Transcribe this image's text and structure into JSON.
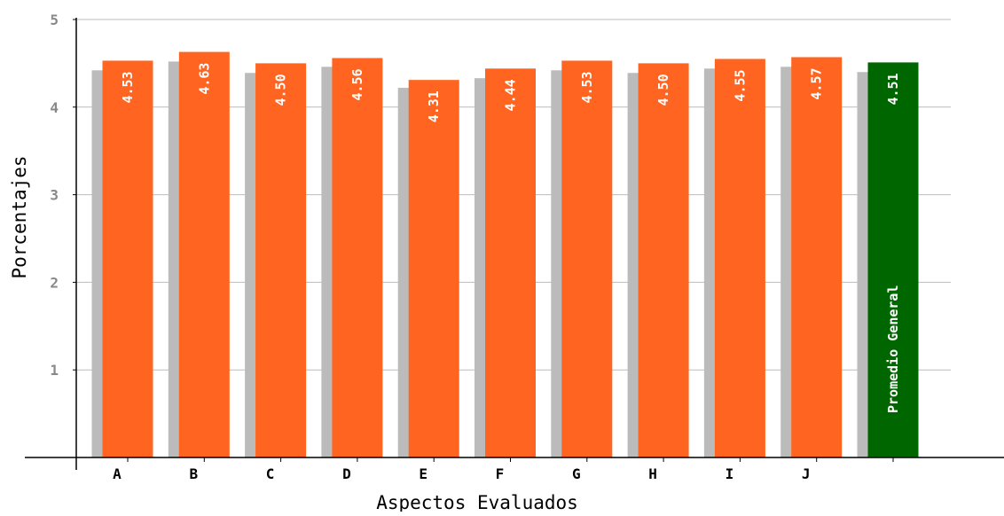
{
  "chart_data": {
    "type": "bar",
    "categories": [
      "A",
      "B",
      "C",
      "D",
      "E",
      "F",
      "G",
      "H",
      "I",
      "J",
      ""
    ],
    "values": [
      4.53,
      4.63,
      4.5,
      4.56,
      4.31,
      4.44,
      4.53,
      4.5,
      4.55,
      4.57,
      4.51
    ],
    "value_labels": [
      "4.53",
      "4.63",
      "4.50",
      "4.56",
      "4.31",
      "4.44",
      "4.53",
      "4.50",
      "4.55",
      "4.57",
      "4.51"
    ],
    "shadow_values": [
      4.42,
      4.52,
      4.39,
      4.46,
      4.22,
      4.33,
      4.42,
      4.39,
      4.44,
      4.46,
      4.4
    ],
    "average_bar_label": "Promedio General",
    "xlabel": "Aspectos Evaluados",
    "ylabel": "Porcentajes",
    "ylim": [
      0,
      5
    ],
    "yticks": [
      "1",
      "2",
      "3",
      "4",
      "5"
    ],
    "grid": true,
    "colors": {
      "bar": "#ff6420",
      "average_bar": "#006600",
      "shadow": "#bbbbbb",
      "grid": "#bbbbbb",
      "axis": "#000000",
      "label_text": "#ffffff"
    }
  }
}
